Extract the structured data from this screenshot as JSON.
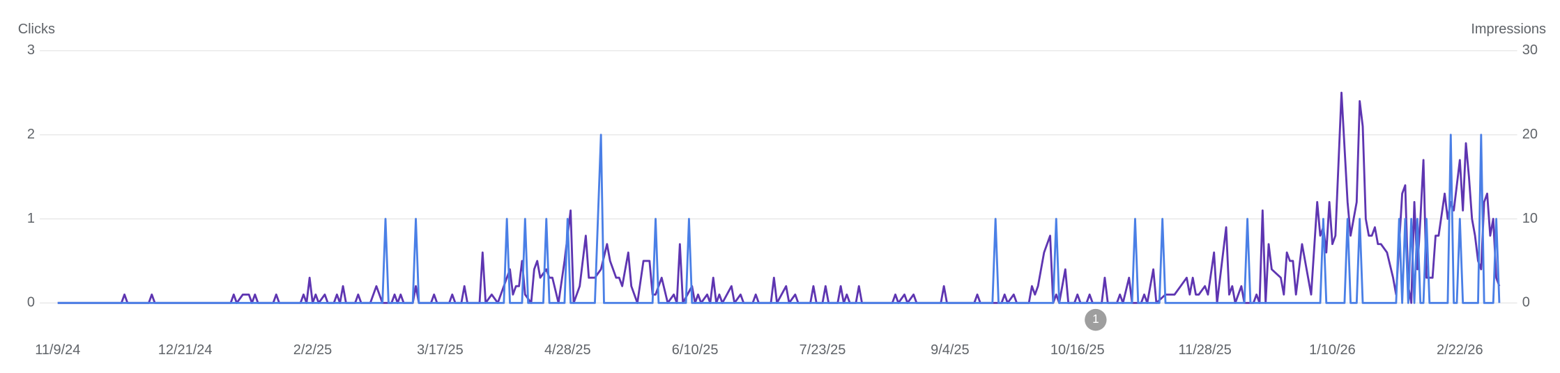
{
  "chart_data": {
    "type": "line",
    "ylabel": "Clicks",
    "y2label": "Impressions",
    "xlim": [
      0,
      475
    ],
    "xticks": [
      {
        "value": 0,
        "label": "11/9/24"
      },
      {
        "value": 42,
        "label": "12/21/24"
      },
      {
        "value": 84,
        "label": "2/2/25"
      },
      {
        "value": 126,
        "label": "3/17/25"
      },
      {
        "value": 168,
        "label": "4/28/25"
      },
      {
        "value": 210,
        "label": "6/10/25"
      },
      {
        "value": 252,
        "label": "7/23/25"
      },
      {
        "value": 294,
        "label": "9/4/25"
      },
      {
        "value": 336,
        "label": "10/16/25"
      },
      {
        "value": 378,
        "label": "11/28/25"
      },
      {
        "value": 420,
        "label": "1/10/26"
      },
      {
        "value": 462,
        "label": "2/22/26"
      }
    ],
    "ylim": [
      0,
      3
    ],
    "yticks": [
      0,
      1,
      2,
      3
    ],
    "y2lim": [
      0,
      30
    ],
    "y2ticks": [
      0,
      10,
      20,
      30
    ],
    "grid": true,
    "series": [
      {
        "name": "Impressions",
        "color": "#5e35b1",
        "axis": "y2",
        "x": [
          0,
          21,
          22,
          23,
          30,
          31,
          32,
          57,
          58,
          59,
          61,
          63,
          64,
          65,
          66,
          71,
          72,
          73,
          80,
          81,
          82,
          83,
          84,
          85,
          86,
          88,
          89,
          91,
          92,
          93,
          94,
          95,
          98,
          99,
          100,
          103,
          105,
          107,
          110,
          111,
          112,
          113,
          114,
          117,
          118,
          119,
          123,
          124,
          125,
          129,
          130,
          131,
          133,
          134,
          135,
          139,
          140,
          141,
          143,
          145,
          147,
          149,
          150,
          151,
          152,
          153,
          154,
          156,
          157,
          158,
          159,
          161,
          162,
          163,
          165,
          167,
          169,
          170,
          172,
          174,
          175,
          177,
          179,
          181,
          182,
          184,
          185,
          186,
          188,
          189,
          190,
          191,
          193,
          195,
          196,
          197,
          199,
          201,
          203,
          204,
          205,
          206,
          209,
          210,
          211,
          212,
          214,
          215,
          216,
          217,
          218,
          219,
          222,
          223,
          225,
          226,
          229,
          230,
          231,
          235,
          236,
          237,
          240,
          241,
          243,
          244,
          248,
          249,
          250,
          252,
          253,
          254,
          257,
          258,
          259,
          260,
          261,
          263,
          264,
          265,
          275,
          276,
          277,
          279,
          280,
          282,
          283,
          291,
          292,
          293,
          302,
          303,
          304,
          311,
          312,
          313,
          315,
          316,
          320,
          321,
          322,
          323,
          325,
          327,
          328,
          329,
          330,
          332,
          333,
          335,
          336,
          337,
          339,
          340,
          341,
          344,
          345,
          346,
          349,
          350,
          351,
          353,
          354,
          357,
          358,
          359,
          361,
          362,
          365,
          366,
          368,
          370,
          372,
          373,
          374,
          375,
          376,
          378,
          379,
          381,
          382,
          385,
          386,
          387,
          388,
          390,
          391,
          394,
          395,
          396,
          397,
          398,
          399,
          400,
          403,
          404,
          405,
          406,
          407,
          408,
          410,
          411,
          413,
          415,
          416,
          417,
          418,
          419,
          420,
          421,
          423,
          425,
          426,
          427,
          428,
          429,
          430,
          431,
          432,
          433,
          434,
          435,
          436,
          438,
          440,
          441,
          443,
          444,
          445,
          446,
          447,
          448,
          449,
          450,
          451,
          453,
          454,
          455,
          457,
          458,
          459,
          460,
          462,
          463,
          464,
          465,
          466,
          467,
          468,
          469,
          470,
          471,
          472,
          473,
          474,
          475
        ],
        "values": [
          0,
          0,
          1,
          0,
          0,
          1,
          0,
          0,
          1,
          0,
          1,
          1,
          0,
          1,
          0,
          0,
          1,
          0,
          0,
          1,
          0,
          3,
          0,
          1,
          0,
          1,
          0,
          0,
          1,
          0,
          2,
          0,
          0,
          1,
          0,
          0,
          2,
          0,
          0,
          1,
          0,
          1,
          0,
          0,
          2,
          0,
          0,
          1,
          0,
          0,
          1,
          0,
          0,
          2,
          0,
          0,
          6,
          0,
          1,
          0,
          2,
          4,
          1,
          2,
          2,
          5,
          1,
          0,
          4,
          5,
          3,
          4,
          3,
          3,
          0,
          5,
          11,
          0,
          2,
          8,
          3,
          3,
          4,
          7,
          5,
          3,
          3,
          2,
          6,
          2,
          1,
          0,
          5,
          5,
          1,
          1,
          3,
          0,
          1,
          0,
          7,
          0,
          2,
          0,
          1,
          0,
          1,
          0,
          3,
          0,
          1,
          0,
          2,
          0,
          1,
          0,
          0,
          1,
          0,
          0,
          3,
          0,
          2,
          0,
          1,
          0,
          0,
          2,
          0,
          0,
          2,
          0,
          0,
          2,
          0,
          1,
          0,
          0,
          2,
          0,
          0,
          1,
          0,
          1,
          0,
          1,
          0,
          0,
          2,
          0,
          0,
          1,
          0,
          0,
          1,
          0,
          1,
          0,
          0,
          2,
          1,
          2,
          6,
          8,
          0,
          1,
          0,
          4,
          0,
          0,
          1,
          0,
          0,
          1,
          0,
          0,
          3,
          0,
          0,
          1,
          0,
          3,
          0,
          0,
          1,
          0,
          4,
          0,
          1,
          1,
          1,
          2,
          3,
          1,
          3,
          1,
          1,
          2,
          1,
          6,
          0,
          9,
          1,
          2,
          0,
          2,
          0,
          0,
          1,
          0,
          11,
          0,
          7,
          4,
          3,
          1,
          6,
          5,
          5,
          1,
          7,
          5,
          1,
          12,
          8,
          9,
          6,
          12,
          7,
          8,
          25,
          12,
          8,
          10,
          12,
          24,
          21,
          10,
          8,
          8,
          9,
          7,
          7,
          6,
          3,
          1,
          13,
          14,
          2,
          0,
          12,
          4,
          10,
          17,
          3,
          3,
          8,
          8,
          13,
          10,
          12,
          11,
          17,
          11,
          19,
          15,
          10,
          8,
          5,
          4,
          12,
          13,
          8,
          10,
          3,
          2
        ]
      },
      {
        "name": "Clicks",
        "color": "#4a7fe6",
        "axis": "y",
        "x": [
          0,
          107,
          108,
          109,
          117,
          118,
          119,
          147,
          148,
          149,
          153,
          154,
          155,
          160,
          161,
          162,
          167,
          168,
          169,
          177,
          178,
          179,
          180,
          196,
          197,
          198,
          207,
          208,
          209,
          308,
          309,
          310,
          328,
          329,
          330,
          354,
          355,
          356,
          363,
          364,
          365,
          391,
          392,
          393,
          416,
          417,
          418,
          424,
          425,
          426,
          428,
          429,
          430,
          441,
          442,
          443,
          444,
          445,
          446,
          447,
          448,
          449,
          450,
          451,
          452,
          458,
          459,
          460,
          461,
          462,
          463,
          468,
          469,
          470,
          473,
          474,
          475
        ],
        "values": [
          0,
          0,
          1,
          0,
          0,
          1,
          0,
          0,
          1,
          0,
          0,
          1,
          0,
          0,
          1,
          0,
          0,
          1,
          0,
          0,
          1,
          2,
          0,
          0,
          1,
          0,
          0,
          1,
          0,
          0,
          1,
          0,
          0,
          1,
          0,
          0,
          1,
          0,
          0,
          1,
          0,
          0,
          1,
          0,
          0,
          1,
          0,
          0,
          1,
          0,
          0,
          1,
          0,
          0,
          1,
          0,
          1,
          0,
          1,
          0,
          1,
          0,
          0,
          1,
          0,
          0,
          2,
          0,
          0,
          1,
          0,
          0,
          2,
          0,
          0,
          1,
          0
        ]
      }
    ],
    "annotations": [
      {
        "x": 342,
        "text": "1"
      }
    ]
  }
}
